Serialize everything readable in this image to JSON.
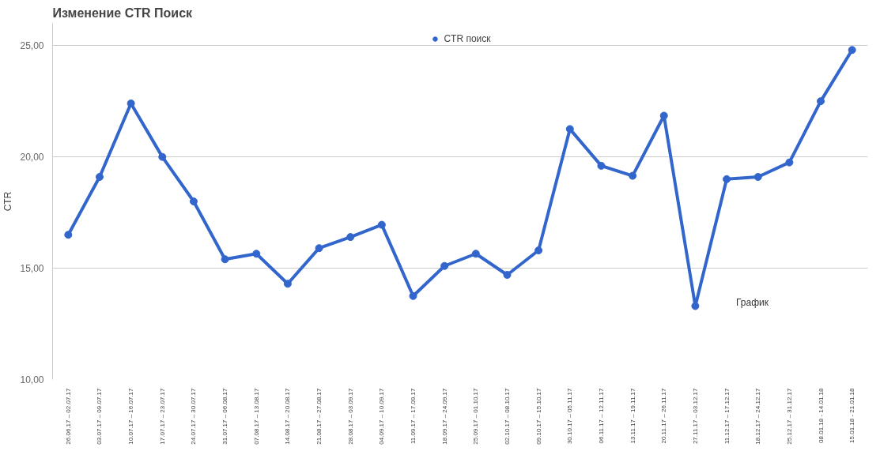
{
  "chart_data": {
    "type": "line",
    "title": "Изменение CTR Поиск",
    "ylabel": "CTR",
    "categories": [
      "26.06.17 – 02.07.17",
      "03.07.17 – 09.07.17",
      "10.07.17 – 16.07.17",
      "17.07.17 – 23.07.17",
      "24.07.17 – 30.07.17",
      "31.07.17 – 06.08.17",
      "07.08.17 – 13.08.17",
      "14.08.17 – 20.08.17",
      "21.08.17 – 27.08.17",
      "28.08.17 – 03.09.17",
      "04.09.17 – 10.09.17",
      "11.09.17 – 17.09.17",
      "18.09.17 – 24.09.17",
      "25.09.17 – 01.10.17",
      "02.10.17 – 08.10.17",
      "09.10.17 – 15.10.17",
      "30.10.17 – 05.11.17",
      "06.11.17 – 12.11.17",
      "13.11.17 – 19.11.17",
      "20.11.17 – 26.11.17",
      "27.11.17 – 03.12.17",
      "11.12.17 – 17.12.17",
      "18.12.17 – 24.12.17",
      "25.12.17 – 31.12.17",
      "08.01.18 - 14.01.18",
      "15.01.18 - 21.01.18"
    ],
    "series": [
      {
        "name": "CTR поиск",
        "color": "#3366cc",
        "values": [
          16.5,
          19.1,
          22.4,
          20.0,
          18.0,
          15.4,
          15.65,
          14.3,
          15.9,
          16.4,
          16.95,
          13.75,
          15.1,
          15.65,
          14.7,
          15.8,
          21.25,
          19.6,
          19.15,
          21.85,
          13.3,
          19.0,
          19.1,
          19.75,
          22.5,
          24.8
        ]
      }
    ],
    "ylim": [
      10,
      26
    ],
    "yticks": [
      {
        "value": 10,
        "label": "10,00"
      },
      {
        "value": 15,
        "label": "15,00"
      },
      {
        "value": 20,
        "label": "20,00"
      },
      {
        "value": 25,
        "label": "25,00"
      }
    ],
    "annotations": [
      "График"
    ],
    "grid": "y",
    "legend": "top",
    "marker": "circle",
    "line_style": "solid"
  }
}
